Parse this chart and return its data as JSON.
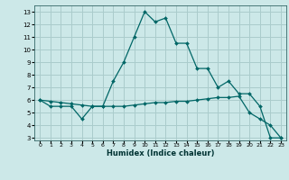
{
  "title": "",
  "xlabel": "Humidex (Indice chaleur)",
  "bg_color": "#cce8e8",
  "grid_color": "#aacccc",
  "line_color": "#006666",
  "x_main": [
    0,
    1,
    2,
    3,
    4,
    5,
    6,
    7,
    8,
    9,
    10,
    11,
    12,
    13,
    14,
    15,
    16,
    17,
    18,
    19,
    20,
    21,
    22,
    23
  ],
  "y_main": [
    6.0,
    5.5,
    5.5,
    5.5,
    4.5,
    5.5,
    5.5,
    7.5,
    9.0,
    11.0,
    13.0,
    12.2,
    12.5,
    10.5,
    10.5,
    8.5,
    8.5,
    7.0,
    7.5,
    6.5,
    6.5,
    5.5,
    3.0,
    3.0
  ],
  "x_line2": [
    0,
    1,
    2,
    3,
    4,
    5,
    6,
    7,
    8,
    9,
    10,
    11,
    12,
    13,
    14,
    15,
    16,
    17,
    18,
    19,
    20,
    21,
    22,
    23
  ],
  "y_line2": [
    6.0,
    5.9,
    5.8,
    5.7,
    5.6,
    5.5,
    5.5,
    5.5,
    5.5,
    5.6,
    5.7,
    5.8,
    5.8,
    5.9,
    5.9,
    6.0,
    6.1,
    6.2,
    6.2,
    6.3,
    5.0,
    4.5,
    4.0,
    3.0
  ],
  "ylim": [
    2.8,
    13.5
  ],
  "xlim": [
    -0.5,
    23.5
  ],
  "yticks": [
    3,
    4,
    5,
    6,
    7,
    8,
    9,
    10,
    11,
    12,
    13
  ],
  "xticks": [
    0,
    1,
    2,
    3,
    4,
    5,
    6,
    7,
    8,
    9,
    10,
    11,
    12,
    13,
    14,
    15,
    16,
    17,
    18,
    19,
    20,
    21,
    22,
    23
  ]
}
